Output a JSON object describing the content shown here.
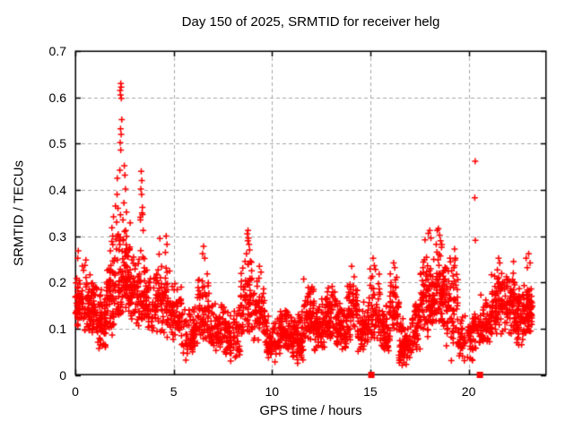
{
  "colors": {
    "marker": "#ff0000",
    "grid": "#a8a8a8",
    "axis": "#000000",
    "text": "#000000",
    "background": "#ffffff"
  },
  "chart_data": {
    "type": "scatter",
    "title": "Day 150 of 2025, SRMTID for receiver helg",
    "xlabel": "GPS time / hours",
    "ylabel": "SRMTID / TECUs",
    "xlim": [
      0,
      23.94
    ],
    "ylim": [
      0,
      0.7
    ],
    "xticks": [
      0,
      5,
      10,
      15,
      20
    ],
    "xtick_labels": [
      "0",
      "5",
      "10",
      "15",
      "20"
    ],
    "yticks": [
      0,
      0.1,
      0.2,
      0.3,
      0.4,
      0.5,
      0.6,
      0.7
    ],
    "ytick_labels": [
      "0",
      "0.1",
      "0.2",
      "0.3",
      "0.4",
      "0.5",
      "0.6",
      "0.7"
    ],
    "grid": {
      "show": true,
      "style": "dashed",
      "at": "major-ticks"
    },
    "legend": "none",
    "marker_color": "#ff0000",
    "cluster_format": [
      "x_start",
      "x_end",
      "count",
      "y_min",
      "y_max"
    ],
    "series": [
      {
        "name": "srmtid",
        "marker": "plus",
        "size": 7,
        "clusters": [
          [
            0.0,
            0.15,
            14,
            0.12,
            0.23
          ],
          [
            0.1,
            0.6,
            55,
            0.09,
            0.25
          ],
          [
            0.6,
            1.1,
            65,
            0.08,
            0.22
          ],
          [
            1.1,
            1.6,
            70,
            0.05,
            0.2
          ],
          [
            1.6,
            2.0,
            55,
            0.08,
            0.3
          ],
          [
            2.0,
            2.45,
            60,
            0.13,
            0.48
          ],
          [
            2.45,
            2.8,
            55,
            0.12,
            0.35
          ],
          [
            2.8,
            3.25,
            55,
            0.1,
            0.27
          ],
          [
            3.25,
            3.6,
            45,
            0.12,
            0.38
          ],
          [
            3.6,
            4.2,
            60,
            0.08,
            0.24
          ],
          [
            4.2,
            4.8,
            60,
            0.08,
            0.27
          ],
          [
            4.8,
            5.4,
            65,
            0.07,
            0.21
          ],
          [
            5.4,
            6.2,
            70,
            0.04,
            0.16
          ],
          [
            6.2,
            6.8,
            65,
            0.07,
            0.25
          ],
          [
            6.8,
            7.6,
            75,
            0.05,
            0.17
          ],
          [
            7.6,
            8.4,
            75,
            0.03,
            0.15
          ],
          [
            8.4,
            9.0,
            65,
            0.08,
            0.27
          ],
          [
            9.0,
            9.7,
            65,
            0.07,
            0.22
          ],
          [
            9.7,
            10.4,
            75,
            0.03,
            0.13
          ],
          [
            10.4,
            11.0,
            70,
            0.05,
            0.16
          ],
          [
            11.0,
            11.6,
            75,
            0.03,
            0.14
          ],
          [
            11.6,
            12.15,
            65,
            0.07,
            0.22
          ],
          [
            12.15,
            12.7,
            65,
            0.05,
            0.17
          ],
          [
            12.7,
            13.25,
            65,
            0.07,
            0.21
          ],
          [
            13.25,
            13.8,
            65,
            0.05,
            0.16
          ],
          [
            13.8,
            14.35,
            60,
            0.07,
            0.22
          ],
          [
            14.35,
            14.9,
            60,
            0.05,
            0.16
          ],
          [
            14.9,
            15.5,
            55,
            0.07,
            0.24
          ],
          [
            15.5,
            16.0,
            55,
            0.05,
            0.16
          ],
          [
            16.0,
            16.45,
            50,
            0.09,
            0.23
          ],
          [
            16.45,
            17.1,
            70,
            0.02,
            0.13
          ],
          [
            17.1,
            17.55,
            50,
            0.05,
            0.18
          ],
          [
            17.55,
            18.0,
            55,
            0.08,
            0.28
          ],
          [
            18.0,
            18.35,
            50,
            0.1,
            0.26
          ],
          [
            18.35,
            18.8,
            65,
            0.1,
            0.3
          ],
          [
            18.8,
            19.45,
            65,
            0.05,
            0.26
          ],
          [
            19.45,
            20.25,
            70,
            0.03,
            0.14
          ],
          [
            20.25,
            20.6,
            25,
            0.05,
            0.15
          ],
          [
            20.6,
            21.1,
            50,
            0.06,
            0.18
          ],
          [
            21.1,
            21.7,
            70,
            0.08,
            0.24
          ],
          [
            21.7,
            22.35,
            75,
            0.08,
            0.23
          ],
          [
            22.35,
            22.95,
            75,
            0.06,
            0.2
          ],
          [
            22.95,
            23.25,
            55,
            0.09,
            0.21
          ]
        ],
        "points": [
          [
            2.28,
            0.615
          ],
          [
            2.31,
            0.63
          ],
          [
            2.33,
            0.622
          ],
          [
            2.3,
            0.605
          ],
          [
            2.34,
            0.598
          ],
          [
            2.36,
            0.552
          ],
          [
            2.3,
            0.532
          ],
          [
            2.33,
            0.52
          ],
          [
            2.28,
            0.502
          ],
          [
            2.31,
            0.486
          ],
          [
            2.49,
            0.452
          ],
          [
            2.52,
            0.432
          ],
          [
            2.55,
            0.402
          ],
          [
            2.47,
            0.372
          ],
          [
            2.6,
            0.352
          ],
          [
            2.42,
            0.335
          ],
          [
            2.56,
            0.312
          ],
          [
            2.04,
            0.365
          ],
          [
            1.94,
            0.342
          ],
          [
            2.1,
            0.33
          ],
          [
            1.86,
            0.318
          ],
          [
            1.9,
            0.3
          ],
          [
            3.35,
            0.44
          ],
          [
            3.38,
            0.42
          ],
          [
            3.33,
            0.402
          ],
          [
            3.37,
            0.39
          ],
          [
            3.41,
            0.362
          ],
          [
            3.39,
            0.35
          ],
          [
            3.31,
            0.335
          ],
          [
            3.45,
            0.312
          ],
          [
            4.3,
            0.295
          ],
          [
            4.62,
            0.3
          ],
          [
            4.66,
            0.282
          ],
          [
            4.58,
            0.265
          ],
          [
            6.52,
            0.278
          ],
          [
            6.47,
            0.262
          ],
          [
            6.58,
            0.252
          ],
          [
            8.74,
            0.305
          ],
          [
            8.78,
            0.312
          ],
          [
            8.8,
            0.296
          ],
          [
            8.77,
            0.29
          ],
          [
            8.83,
            0.282
          ],
          [
            8.86,
            0.27
          ],
          [
            8.7,
            0.262
          ],
          [
            8.9,
            0.246
          ],
          [
            9.36,
            0.235
          ],
          [
            9.44,
            0.222
          ],
          [
            14.05,
            0.235
          ],
          [
            15.14,
            0.252
          ],
          [
            15.2,
            0.236
          ],
          [
            15.26,
            0.228
          ],
          [
            16.18,
            0.242
          ],
          [
            16.24,
            0.232
          ],
          [
            17.78,
            0.292
          ],
          [
            17.95,
            0.306
          ],
          [
            18.02,
            0.312
          ],
          [
            18.08,
            0.296
          ],
          [
            18.35,
            0.282
          ],
          [
            18.4,
            0.312
          ],
          [
            18.46,
            0.316
          ],
          [
            18.52,
            0.302
          ],
          [
            18.57,
            0.29
          ],
          [
            18.62,
            0.276
          ],
          [
            19.28,
            0.272
          ],
          [
            19.32,
            0.252
          ],
          [
            19.25,
            0.232
          ],
          [
            20.33,
            0.462
          ],
          [
            20.31,
            0.383
          ],
          [
            20.34,
            0.291
          ],
          [
            21.52,
            0.252
          ],
          [
            21.58,
            0.242
          ],
          [
            22.28,
            0.245
          ],
          [
            22.92,
            0.252
          ],
          [
            23.05,
            0.262
          ],
          [
            23.12,
            0.242
          ],
          [
            22.98,
            0.232
          ],
          [
            0.04,
            0.17
          ],
          [
            0.06,
            0.155
          ],
          [
            0.03,
            0.135
          ],
          [
            0.12,
            0.252
          ],
          [
            0.15,
            0.268
          ],
          [
            5.62,
            0.032
          ],
          [
            7.9,
            0.03
          ],
          [
            10.15,
            0.028
          ],
          [
            11.3,
            0.025
          ],
          [
            16.62,
            0.021
          ],
          [
            19.12,
            0.031
          ],
          [
            19.78,
            0.031
          ]
        ]
      },
      {
        "name": "axis-square-markers",
        "marker": "square",
        "size": 7,
        "points": [
          [
            15.05,
            0
          ],
          [
            20.57,
            0
          ]
        ]
      }
    ]
  }
}
